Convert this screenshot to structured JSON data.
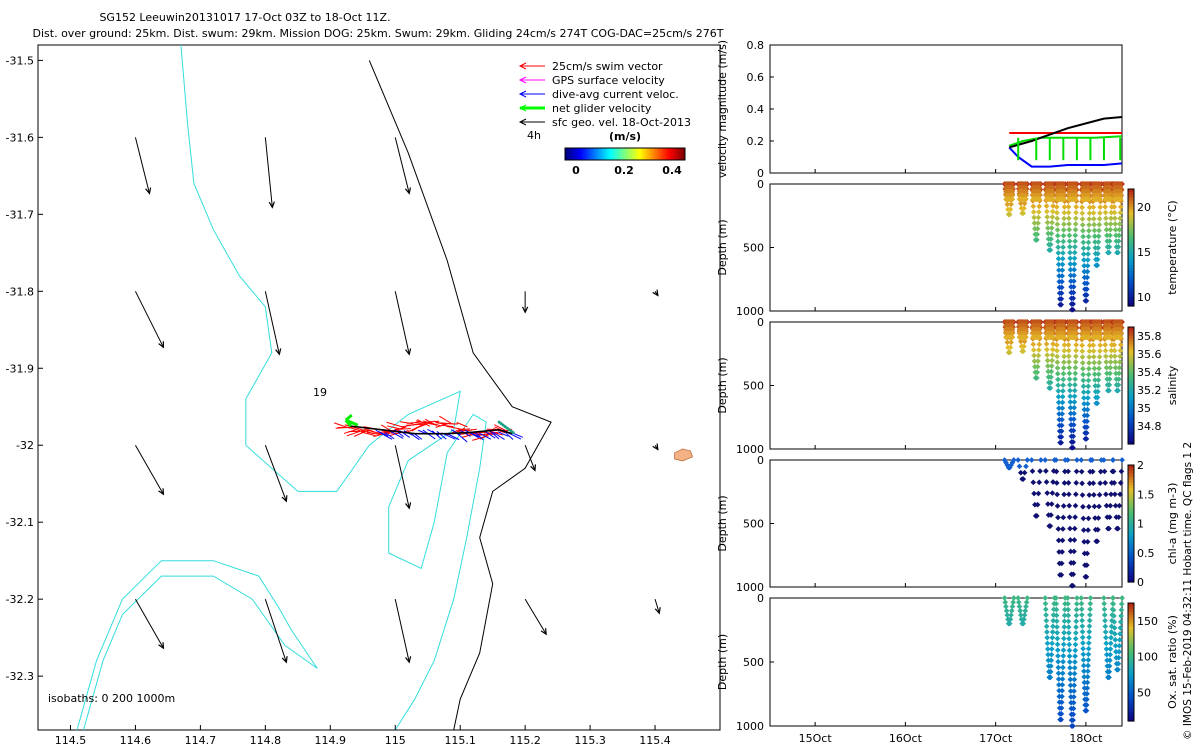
{
  "title_line1": "SG152 Leeuwin20131017 17-Oct 03Z to 18-Oct 11Z.",
  "title_line2": "Dist. over ground: 25km. Dist. swum: 29km. Mission DOG: 25km. Swum: 29km. Gliding 24cm/s 274T COG-DAC=25cm/s 276T",
  "side_credit": "© IMOS 15-Feb-2019 04:32:11 Hobart time. QC flags 1  2",
  "chart_data": [
    {
      "type": "map",
      "xlim": [
        114.45,
        115.5
      ],
      "ylim": [
        -32.37,
        -31.48
      ],
      "xticks": [
        "114.5",
        "114.6",
        "114.7",
        "114.8",
        "114.9",
        "115",
        "115.1",
        "115.2",
        "115.3",
        "115.4"
      ],
      "yticks": [
        "-31.5",
        "-31.6",
        "-31.7",
        "-31.8",
        "-31.9",
        "-32",
        "-32.1",
        "-32.2",
        "-32.3"
      ],
      "legend": {
        "placement": "top-right",
        "entries": [
          {
            "label": "25cm/s swim vector",
            "color": "#ff0000"
          },
          {
            "label": "GPS surface velocity",
            "color": "#ff00ff"
          },
          {
            "label": "dive-avg current veloc.",
            "color": "#0000ff"
          },
          {
            "label": "net glider velocity",
            "color": "#00ff00"
          },
          {
            "label": "sfc geo. vel. 18-Oct-2013",
            "color": "#000000"
          }
        ]
      },
      "colorbar": {
        "label": "(m/s)",
        "ticks": [
          "0",
          "0.2",
          "0.4"
        ],
        "range": [
          0,
          0.5
        ]
      },
      "annotations": {
        "label_19": "19",
        "label_4h": "4h",
        "isobaths": "isobaths: 0   200  1000m"
      },
      "geo_vectors": [
        {
          "lon": 114.6,
          "lat": -31.6,
          "u": 0.01,
          "v": -0.04
        },
        {
          "lon": 114.8,
          "lat": -31.6,
          "u": 0.005,
          "v": -0.05
        },
        {
          "lon": 115.0,
          "lat": -31.6,
          "u": 0.01,
          "v": -0.04
        },
        {
          "lon": 114.6,
          "lat": -31.8,
          "u": 0.02,
          "v": -0.04
        },
        {
          "lon": 114.8,
          "lat": -31.8,
          "u": 0.01,
          "v": -0.045
        },
        {
          "lon": 115.0,
          "lat": -31.8,
          "u": 0.01,
          "v": -0.045
        },
        {
          "lon": 115.2,
          "lat": -31.8,
          "u": 0.0,
          "v": -0.015
        },
        {
          "lon": 115.4,
          "lat": -31.8,
          "u": 0.002,
          "v": -0.003
        },
        {
          "lon": 114.6,
          "lat": -32.0,
          "u": 0.02,
          "v": -0.035
        },
        {
          "lon": 114.8,
          "lat": -32.0,
          "u": 0.015,
          "v": -0.04
        },
        {
          "lon": 115.0,
          "lat": -32.0,
          "u": 0.01,
          "v": -0.045
        },
        {
          "lon": 115.2,
          "lat": -32.0,
          "u": 0.007,
          "v": -0.018
        },
        {
          "lon": 115.4,
          "lat": -32.0,
          "u": 0.002,
          "v": -0.003
        },
        {
          "lon": 114.6,
          "lat": -32.2,
          "u": 0.02,
          "v": -0.035
        },
        {
          "lon": 114.8,
          "lat": -32.2,
          "u": 0.015,
          "v": -0.045
        },
        {
          "lon": 115.0,
          "lat": -32.2,
          "u": 0.01,
          "v": -0.045
        },
        {
          "lon": 115.2,
          "lat": -32.2,
          "u": 0.015,
          "v": -0.025
        },
        {
          "lon": 115.4,
          "lat": -32.2,
          "u": 0.003,
          "v": -0.01
        }
      ],
      "coastline_0m": [
        [
          115.45,
          -32.02
        ],
        [
          115.42,
          -32.015
        ],
        [
          115.43,
          -32.02
        ]
      ],
      "isobath_200m": [
        [
          114.96,
          -31.5
        ],
        [
          115.02,
          -31.62
        ],
        [
          115.08,
          -31.76
        ],
        [
          115.12,
          -31.88
        ],
        [
          115.18,
          -31.95
        ],
        [
          115.24,
          -31.97
        ],
        [
          115.2,
          -32.03
        ],
        [
          115.15,
          -32.06
        ],
        [
          115.13,
          -32.12
        ],
        [
          115.15,
          -32.18
        ],
        [
          115.13,
          -32.27
        ],
        [
          115.1,
          -32.33
        ],
        [
          115.09,
          -32.37
        ]
      ],
      "isobath_1000m": [
        [
          114.67,
          -31.48
        ],
        [
          114.68,
          -31.58
        ],
        [
          114.69,
          -31.66
        ],
        [
          114.72,
          -31.72
        ],
        [
          114.76,
          -31.78
        ],
        [
          114.8,
          -31.82
        ],
        [
          114.81,
          -31.88
        ],
        [
          114.77,
          -31.94
        ],
        [
          114.77,
          -32.0
        ],
        [
          114.85,
          -32.06
        ],
        [
          114.91,
          -32.06
        ],
        [
          114.96,
          -32.0
        ],
        [
          115.02,
          -31.96
        ],
        [
          115.1,
          -31.93
        ],
        [
          115.09,
          -31.98
        ],
        [
          115.02,
          -32.02
        ],
        [
          114.99,
          -32.08
        ],
        [
          114.99,
          -32.14
        ],
        [
          115.04,
          -32.16
        ],
        [
          115.06,
          -32.1
        ],
        [
          115.08,
          -32.01
        ],
        [
          115.12,
          -31.96
        ],
        [
          115.14,
          -31.97
        ],
        [
          115.13,
          -32.03
        ],
        [
          115.11,
          -32.12
        ],
        [
          115.09,
          -32.2
        ],
        [
          115.06,
          -32.28
        ],
        [
          115.03,
          -32.33
        ],
        [
          115.0,
          -32.37
        ]
      ],
      "isobath_1000m_b": [
        [
          114.52,
          -32.37
        ],
        [
          114.55,
          -32.28
        ],
        [
          114.58,
          -32.22
        ],
        [
          114.64,
          -32.17
        ],
        [
          114.72,
          -32.17
        ],
        [
          114.78,
          -32.2
        ],
        [
          114.83,
          -32.26
        ],
        [
          114.88,
          -32.29
        ],
        [
          114.84,
          -32.24
        ],
        [
          114.82,
          -32.21
        ],
        [
          114.79,
          -32.17
        ],
        [
          114.72,
          -32.15
        ],
        [
          114.64,
          -32.15
        ],
        [
          114.58,
          -32.2
        ],
        [
          114.54,
          -32.28
        ],
        [
          114.51,
          -32.37
        ]
      ],
      "track": {
        "lon": [
          114.93,
          114.98,
          115.03,
          115.08,
          115.12,
          115.16,
          115.18
        ],
        "lat": [
          -31.975,
          -31.98,
          -31.985,
          -31.985,
          -31.983,
          -31.98,
          -31.985
        ]
      }
    },
    {
      "type": "line",
      "ylabel": "velocity magnitude (m/s)",
      "xlim": [
        14.5,
        18.4
      ],
      "ylim": [
        0,
        0.8
      ],
      "yticks": [
        "0",
        "0.2",
        "0.4",
        "0.6",
        "0.8"
      ],
      "series": [
        {
          "color": "#ff0000",
          "x": [
            17.15,
            18.4
          ],
          "y": [
            0.25,
            0.25
          ]
        },
        {
          "color": "#00dd00",
          "x": [
            17.15,
            17.3,
            17.5,
            17.8,
            18.1,
            18.4
          ],
          "y": [
            0.17,
            0.2,
            0.22,
            0.22,
            0.22,
            0.23
          ]
        },
        {
          "color": "#0000ff",
          "x": [
            17.15,
            17.25,
            17.4,
            17.6,
            17.8,
            18.0,
            18.2,
            18.4
          ],
          "y": [
            0.16,
            0.1,
            0.04,
            0.04,
            0.05,
            0.05,
            0.05,
            0.06
          ]
        },
        {
          "color": "#000000",
          "x": [
            17.15,
            17.4,
            17.6,
            17.8,
            18.0,
            18.2,
            18.4
          ],
          "y": [
            0.16,
            0.2,
            0.24,
            0.28,
            0.31,
            0.34,
            0.35
          ]
        }
      ]
    },
    {
      "type": "scatter",
      "ylabel": "Depth (m)",
      "variable": "temperature",
      "colorbar_label": "temperature (°C)",
      "colorbar_range": [
        9,
        22
      ],
      "colorbar_ticks": [
        "20",
        "15",
        "10"
      ],
      "ylim": [
        0,
        1000
      ],
      "yticks": [
        "0",
        "500",
        "1000"
      ],
      "dives": [
        [
          17.15,
          240
        ],
        [
          17.3,
          230
        ],
        [
          17.45,
          440
        ],
        [
          17.6,
          520
        ],
        [
          17.72,
          950
        ],
        [
          17.85,
          990
        ],
        [
          18.0,
          920
        ],
        [
          18.12,
          640
        ],
        [
          18.25,
          540
        ],
        [
          18.35,
          540
        ]
      ]
    },
    {
      "type": "scatter",
      "ylabel": "Depth (m)",
      "variable": "salinity",
      "colorbar_label": "salinity",
      "colorbar_range": [
        34.6,
        35.9
      ],
      "colorbar_ticks": [
        "35.8",
        "35.6",
        "35.4",
        "35.2",
        "35",
        "34.8"
      ],
      "ylim": [
        0,
        1000
      ],
      "yticks": [
        "0",
        "500",
        "1000"
      ],
      "dives": [
        [
          17.15,
          240
        ],
        [
          17.3,
          230
        ],
        [
          17.45,
          440
        ],
        [
          17.6,
          520
        ],
        [
          17.72,
          950
        ],
        [
          17.85,
          990
        ],
        [
          18.0,
          920
        ],
        [
          18.12,
          640
        ],
        [
          18.25,
          540
        ],
        [
          18.35,
          540
        ]
      ]
    },
    {
      "type": "scatter",
      "ylabel": "Depth (m)",
      "variable": "chl-a",
      "colorbar_label": "chl-a (mg m-3)",
      "colorbar_range": [
        0,
        2
      ],
      "colorbar_ticks": [
        "2",
        "1.5",
        "1",
        "0.5",
        "0"
      ],
      "ylim": [
        0,
        1000
      ],
      "yticks": [
        "0",
        "500",
        "1000"
      ],
      "dives": [
        [
          17.15,
          60
        ],
        [
          17.3,
          150
        ],
        [
          17.45,
          440
        ],
        [
          17.6,
          520
        ],
        [
          17.72,
          950
        ],
        [
          17.85,
          990
        ],
        [
          18.0,
          920
        ],
        [
          18.12,
          640
        ],
        [
          18.25,
          540
        ],
        [
          18.35,
          540
        ]
      ]
    },
    {
      "type": "scatter",
      "ylabel": "Depth (m)",
      "variable": "oxygen",
      "colorbar_label": "Ox. sat. ratio (%)",
      "colorbar_range": [
        10,
        175
      ],
      "colorbar_ticks": [
        "150",
        "100",
        "50"
      ],
      "ylim": [
        0,
        1000
      ],
      "yticks": [
        "0",
        "500",
        "1000"
      ],
      "xticks": [
        "15Oct",
        "16Oct",
        "17Oct",
        "18Oct"
      ],
      "dives": [
        [
          17.15,
          200
        ],
        [
          17.3,
          200
        ],
        [
          17.6,
          620
        ],
        [
          17.72,
          950
        ],
        [
          17.85,
          1000
        ],
        [
          18.0,
          880
        ],
        [
          18.25,
          620
        ],
        [
          18.35,
          560
        ]
      ]
    }
  ]
}
